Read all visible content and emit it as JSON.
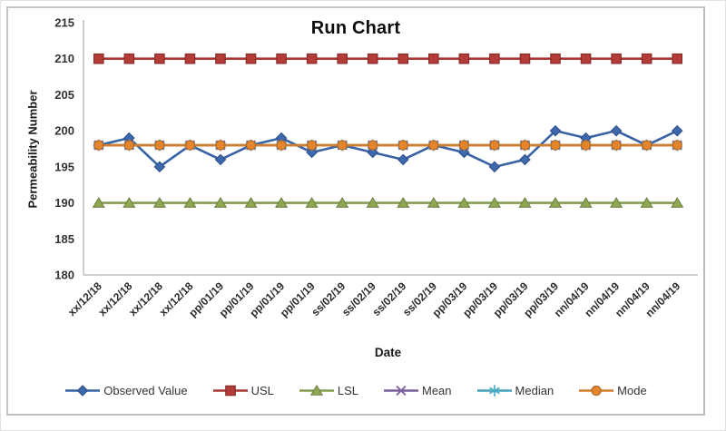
{
  "figure": {
    "background": "#ffffff",
    "border_color": "#c6c6c6"
  },
  "colors": {
    "axis_line": "#bfbfbf",
    "tick_text": "#333333",
    "title_text": "#0d0d0d"
  },
  "chart_data": {
    "type": "line",
    "title": "Run Chart",
    "xlabel": "Date",
    "ylabel": "Permeability Number",
    "ylim": [
      180,
      215
    ],
    "yticks": [
      180,
      185,
      190,
      195,
      200,
      205,
      210,
      215
    ],
    "grid": false,
    "legend_position": "bottom",
    "categories": [
      "xx/12/18",
      "xx/12/18",
      "xx/12/18",
      "xx/12/18",
      "pp/01/19",
      "pp/01/19",
      "pp/01/19",
      "pp/01/19",
      "ss/02/19",
      "ss/02/19",
      "ss/02/19",
      "ss/02/19",
      "pp/03/19",
      "pp/03/19",
      "pp/03/19",
      "pp/03/19",
      "nn/04/19",
      "nn/04/19",
      "nn/04/19",
      "nn/04/19"
    ],
    "series": [
      {
        "name": "Observed Value",
        "marker": "diamond",
        "color": "#3D68AE",
        "values": [
          198,
          199,
          195,
          198,
          196,
          198,
          199,
          197,
          198,
          197,
          196,
          198,
          197,
          195,
          196,
          200,
          199,
          200,
          198,
          200
        ]
      },
      {
        "name": "USL",
        "marker": "square",
        "color": "#B33B38",
        "values": [
          210,
          210,
          210,
          210,
          210,
          210,
          210,
          210,
          210,
          210,
          210,
          210,
          210,
          210,
          210,
          210,
          210,
          210,
          210,
          210
        ]
      },
      {
        "name": "LSL",
        "marker": "triangle",
        "color": "#8FA653",
        "values": [
          190,
          190,
          190,
          190,
          190,
          190,
          190,
          190,
          190,
          190,
          190,
          190,
          190,
          190,
          190,
          190,
          190,
          190,
          190,
          190
        ]
      },
      {
        "name": "Mean",
        "marker": "x",
        "color": "#8064A2",
        "values": [
          198,
          198,
          198,
          198,
          198,
          198,
          198,
          198,
          198,
          198,
          198,
          198,
          198,
          198,
          198,
          198,
          198,
          198,
          198,
          198
        ]
      },
      {
        "name": "Median",
        "marker": "asterisk",
        "color": "#4BACC6",
        "values": [
          198,
          198,
          198,
          198,
          198,
          198,
          198,
          198,
          198,
          198,
          198,
          198,
          198,
          198,
          198,
          198,
          198,
          198,
          198,
          198
        ]
      },
      {
        "name": "Mode",
        "marker": "circle",
        "color": "#E2852D",
        "values": [
          198,
          198,
          198,
          198,
          198,
          198,
          198,
          198,
          198,
          198,
          198,
          198,
          198,
          198,
          198,
          198,
          198,
          198,
          198,
          198
        ]
      }
    ]
  }
}
